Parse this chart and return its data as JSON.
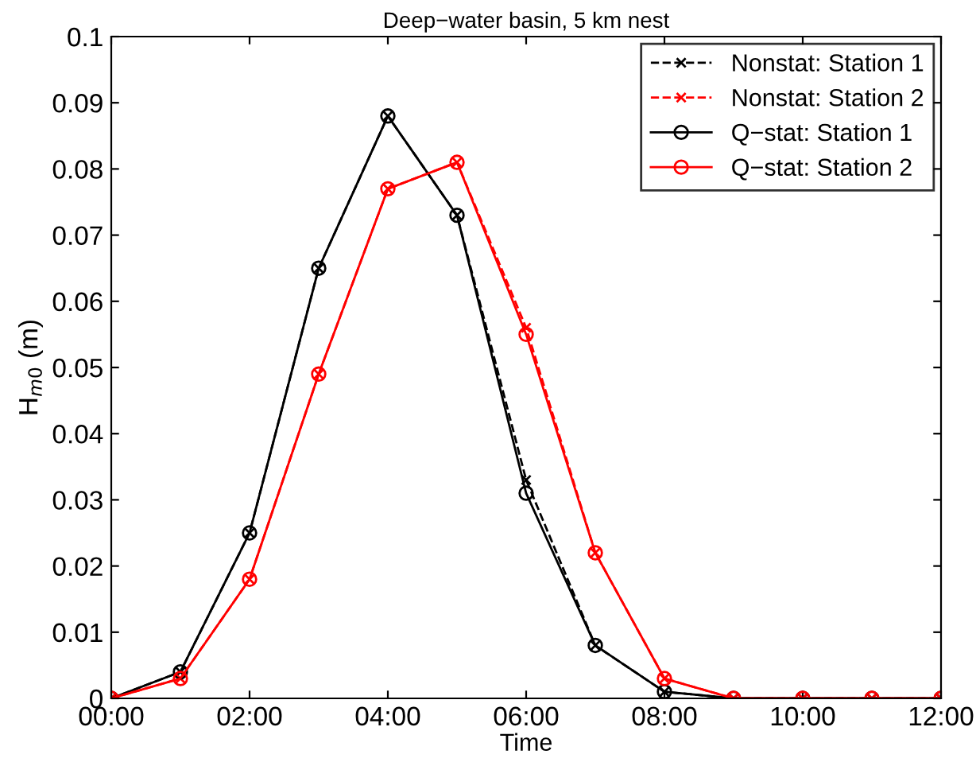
{
  "chart_data": {
    "type": "line",
    "title": "Deep−water basin, 5 km nest",
    "xlabel": "Time",
    "ylabel": "H$_{m0}$ (m)",
    "x": [
      0,
      1,
      2,
      3,
      4,
      5,
      6,
      7,
      8,
      9,
      10,
      11,
      12
    ],
    "series": [
      {
        "name": "Nonstat: Station 1",
        "color": "#000000",
        "marker": "cross",
        "line_style": "dashed",
        "values": [
          0,
          0.004,
          0.025,
          0.065,
          0.088,
          0.073,
          0.033,
          0.008,
          0.001,
          0,
          0,
          0,
          0
        ]
      },
      {
        "name": "Nonstat: Station 2",
        "color": "#ff0000",
        "marker": "cross",
        "line_style": "dashed",
        "values": [
          0,
          0.003,
          0.018,
          0.049,
          0.077,
          0.081,
          0.056,
          0.022,
          0.003,
          0,
          0,
          0,
          0
        ]
      },
      {
        "name": "Q−stat: Station 1",
        "color": "#000000",
        "marker": "circle",
        "line_style": "solid",
        "values": [
          0,
          0.004,
          0.025,
          0.065,
          0.088,
          0.073,
          0.031,
          0.008,
          0.001,
          0,
          0,
          0,
          0
        ]
      },
      {
        "name": "Q−stat: Station 2",
        "color": "#ff0000",
        "marker": "circle",
        "line_style": "solid",
        "values": [
          0,
          0.003,
          0.018,
          0.049,
          0.077,
          0.081,
          0.055,
          0.022,
          0.003,
          0,
          0,
          0,
          0
        ]
      }
    ],
    "xlim": [
      0,
      12
    ],
    "xticks": [
      {
        "value": 0,
        "label": "00:00"
      },
      {
        "value": 2,
        "label": "02:00"
      },
      {
        "value": 4,
        "label": "04:00"
      },
      {
        "value": 6,
        "label": "06:00"
      },
      {
        "value": 8,
        "label": "08:00"
      },
      {
        "value": 10,
        "label": "10:00"
      },
      {
        "value": 12,
        "label": "12:00"
      }
    ],
    "ylim": [
      0,
      0.1
    ],
    "yticks": [
      0,
      0.01,
      0.02,
      0.03,
      0.04,
      0.05,
      0.06,
      0.07,
      0.08,
      0.09,
      0.1
    ],
    "legend": "top right",
    "grid": false
  }
}
